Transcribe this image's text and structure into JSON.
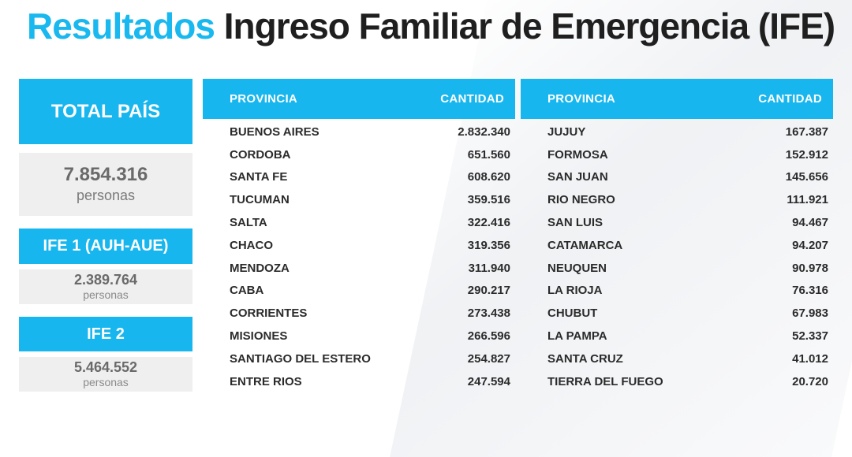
{
  "title": {
    "accent": "Resultados",
    "main": "Ingreso Familiar de Emergencia (IFE)"
  },
  "total": {
    "label": "TOTAL PAÍS",
    "value": "7.854.316",
    "unit": "personas"
  },
  "ife1": {
    "label": "IFE 1 (AUH-AUE)",
    "value": "2.389.764",
    "unit": "personas"
  },
  "ife2": {
    "label": "IFE 2",
    "value": "5.464.552",
    "unit": "personas"
  },
  "table_left": {
    "col_province": "PROVINCIA",
    "col_amount": "CANTIDAD",
    "rows": [
      {
        "province": "BUENOS AIRES",
        "amount": "2.832.340"
      },
      {
        "province": "CORDOBA",
        "amount": "651.560"
      },
      {
        "province": "SANTA FE",
        "amount": "608.620"
      },
      {
        "province": "TUCUMAN",
        "amount": "359.516"
      },
      {
        "province": "SALTA",
        "amount": "322.416"
      },
      {
        "province": "CHACO",
        "amount": "319.356"
      },
      {
        "province": "MENDOZA",
        "amount": "311.940"
      },
      {
        "province": "CABA",
        "amount": "290.217"
      },
      {
        "province": "CORRIENTES",
        "amount": "273.438"
      },
      {
        "province": "MISIONES",
        "amount": "266.596"
      },
      {
        "province": "SANTIAGO DEL ESTERO",
        "amount": "254.827"
      },
      {
        "province": "ENTRE RIOS",
        "amount": "247.594"
      }
    ]
  },
  "table_right": {
    "col_province": "PROVINCIA",
    "col_amount": "CANTIDAD",
    "rows": [
      {
        "province": "JUJUY",
        "amount": "167.387"
      },
      {
        "province": "FORMOSA",
        "amount": "152.912"
      },
      {
        "province": "SAN JUAN",
        "amount": "145.656"
      },
      {
        "province": "RIO NEGRO",
        "amount": "111.921"
      },
      {
        "province": "SAN LUIS",
        "amount": "94.467"
      },
      {
        "province": "CATAMARCA",
        "amount": "94.207"
      },
      {
        "province": "NEUQUEN",
        "amount": "90.978"
      },
      {
        "province": "LA RIOJA",
        "amount": "76.316"
      },
      {
        "province": "CHUBUT",
        "amount": "67.983"
      },
      {
        "province": "LA PAMPA",
        "amount": "52.337"
      },
      {
        "province": "SANTA CRUZ",
        "amount": "41.012"
      },
      {
        "province": "TIERRA DEL FUEGO",
        "amount": "20.720"
      }
    ]
  },
  "colors": {
    "accent": "#17b6ee",
    "panel": "#efefef",
    "text": "#2b2b2b"
  }
}
